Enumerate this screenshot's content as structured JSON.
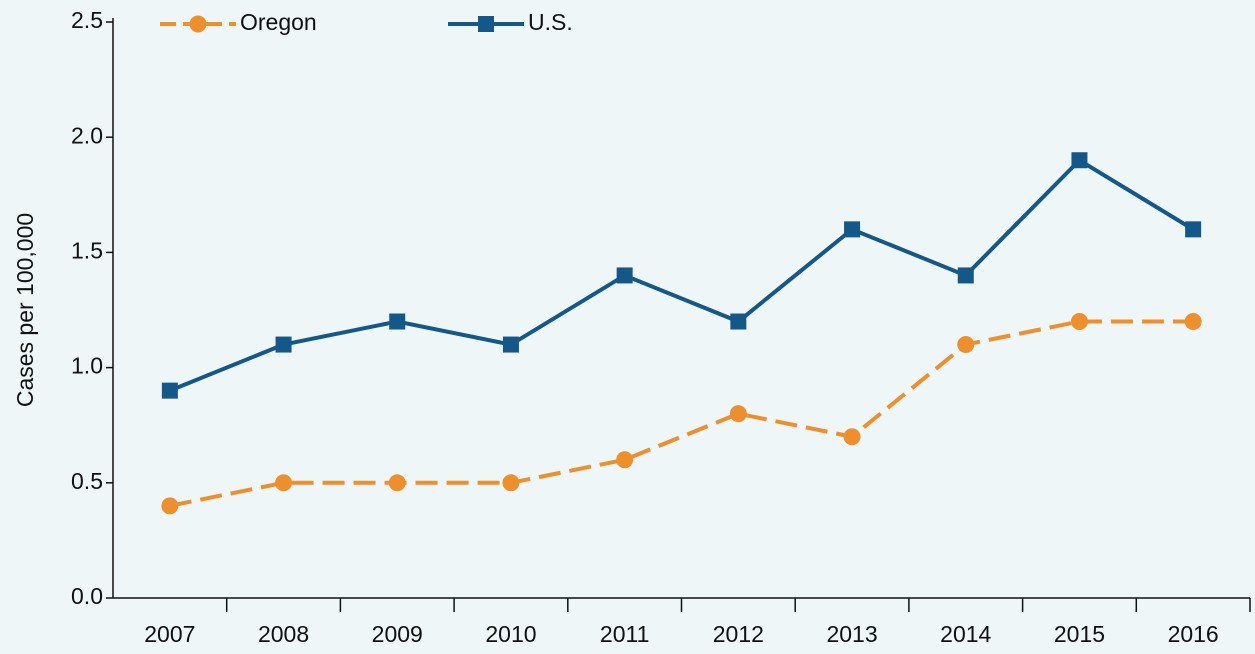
{
  "chart_data": {
    "type": "line",
    "y_label": "Cases per 100,000",
    "categories": [
      "2007",
      "2008",
      "2009",
      "2010",
      "2011",
      "2012",
      "2013",
      "2014",
      "2015",
      "2016"
    ],
    "series": [
      {
        "name": "Oregon",
        "color": "#ee8f2e",
        "dashed": true,
        "marker": "circle",
        "values": [
          0.4,
          0.5,
          0.5,
          0.5,
          0.6,
          0.8,
          0.7,
          1.1,
          1.2,
          1.2
        ]
      },
      {
        "name": "U.S.",
        "color": "#14588a",
        "dashed": false,
        "marker": "square",
        "values": [
          0.9,
          1.1,
          1.2,
          1.1,
          1.4,
          1.2,
          1.6,
          1.4,
          1.9,
          1.6
        ]
      }
    ],
    "ylim": [
      0,
      2.5
    ],
    "yticks": [
      {
        "value": 0,
        "label": "0.0"
      },
      0.5,
      {
        "value": 1,
        "label": "1.0"
      },
      1.5,
      {
        "value": 2,
        "label": "2.0"
      },
      2.5
    ],
    "grid": false
  }
}
